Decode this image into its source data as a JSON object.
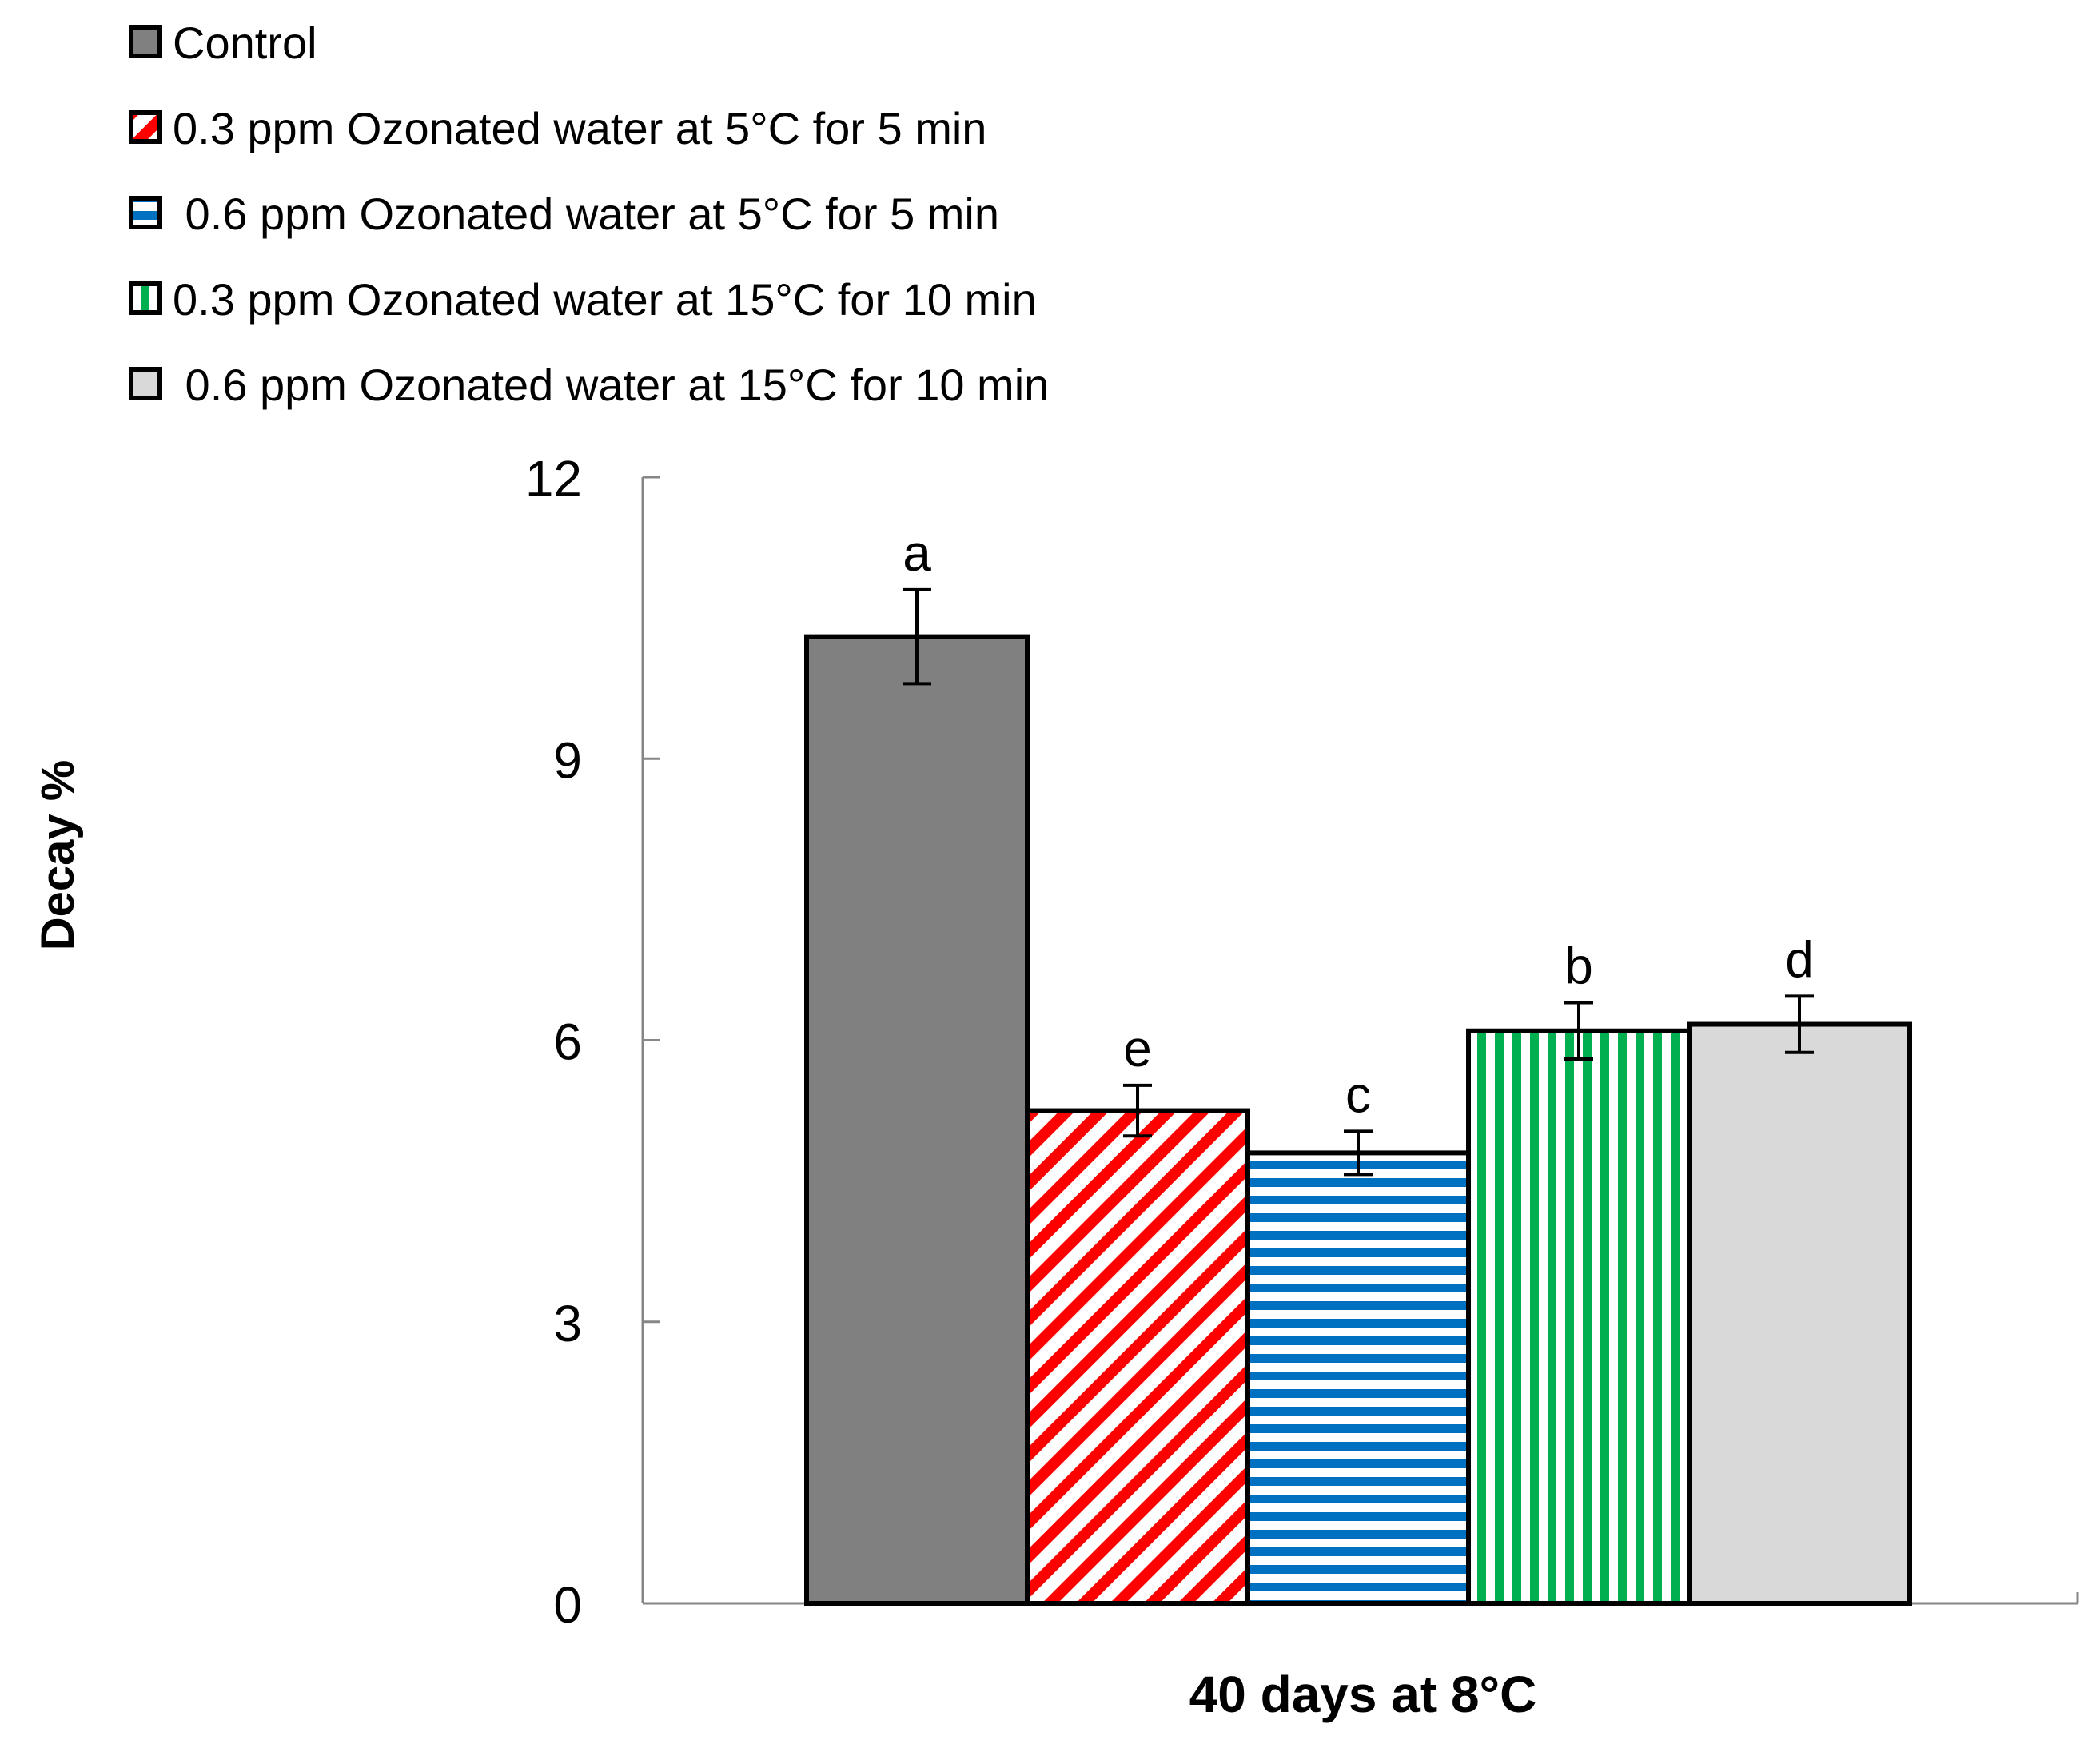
{
  "chart_data": {
    "type": "bar",
    "title": "",
    "xlabel": "40 days at 8°C",
    "ylabel": "Decay %",
    "ylim": [
      0,
      12
    ],
    "yticks": [
      "0",
      "3",
      "6",
      "9",
      "12"
    ],
    "grid": false,
    "legend_position": "top-left",
    "categories": [
      "40 days at 8°C"
    ],
    "series": [
      {
        "name": "Control",
        "values": [
          10.3
        ],
        "error": [
          0.5
        ],
        "letter": "a",
        "fill": "#808080",
        "pattern": "solid",
        "pattern_color": "#808080"
      },
      {
        "name": "0.3 ppm Ozonated water at 5°C for 5 min",
        "values": [
          5.25
        ],
        "error": [
          0.27
        ],
        "letter": "e",
        "fill": "#ffffff",
        "pattern": "diagonal",
        "pattern_color": "#ff0000"
      },
      {
        "name": " 0.6 ppm Ozonated water at 5°C for 5 min",
        "values": [
          4.8
        ],
        "error": [
          0.23
        ],
        "letter": "c",
        "fill": "#ffffff",
        "pattern": "horizontal",
        "pattern_color": "#0070c0"
      },
      {
        "name": "0.3 ppm Ozonated water at 15°C for 10 min",
        "values": [
          6.1
        ],
        "error": [
          0.3
        ],
        "letter": "b",
        "fill": "#ffffff",
        "pattern": "vertical",
        "pattern_color": "#00b050"
      },
      {
        "name": " 0.6 ppm Ozonated water at 15°C for 10 min",
        "values": [
          6.17
        ],
        "error": [
          0.3
        ],
        "letter": "d",
        "fill": "#d9d9d9",
        "pattern": "solid",
        "pattern_color": "#d9d9d9"
      }
    ]
  }
}
